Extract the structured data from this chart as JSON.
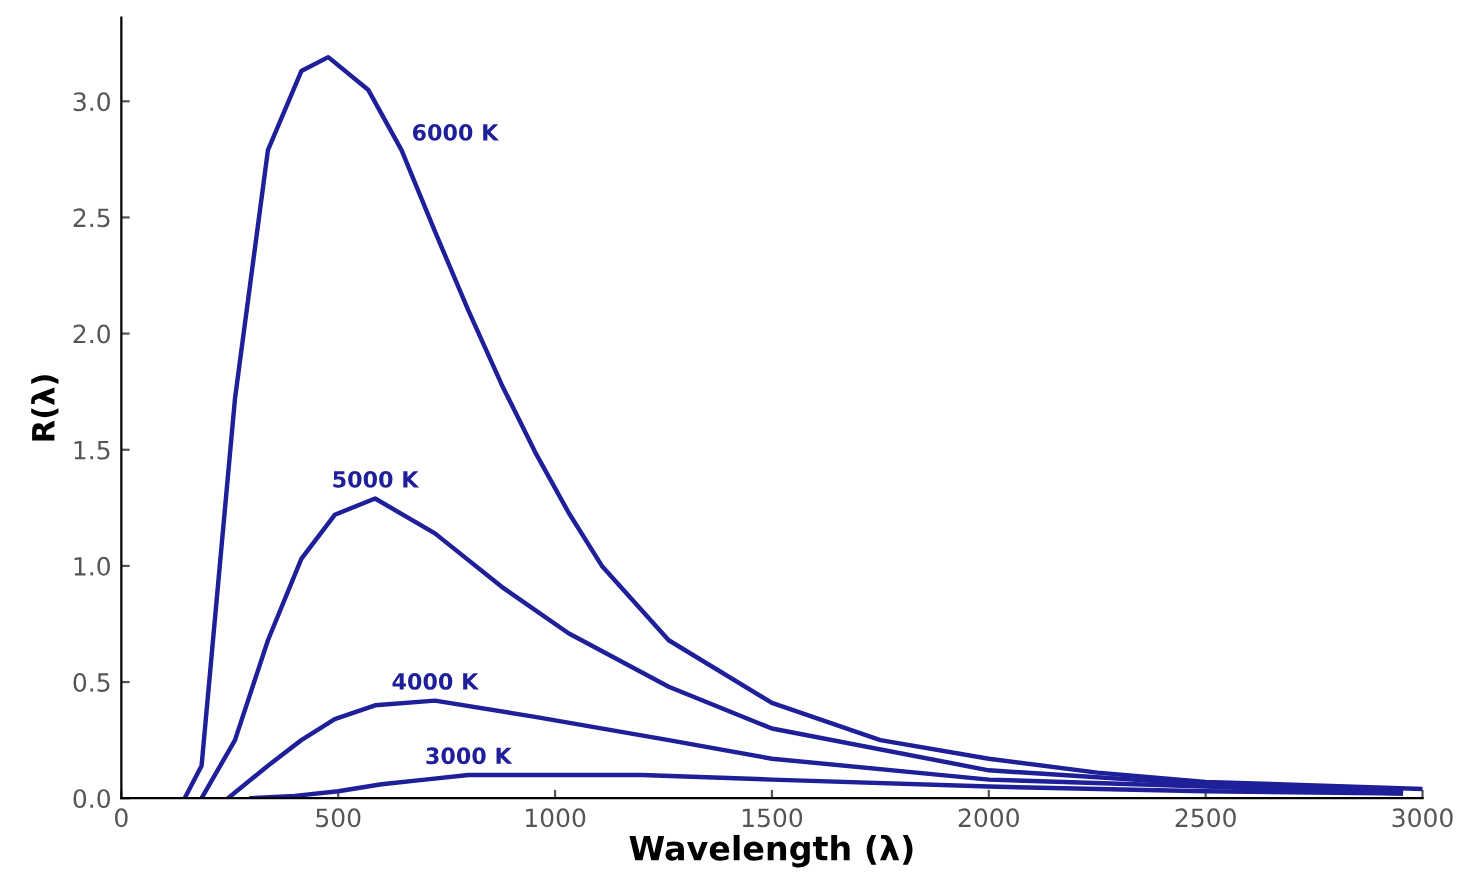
{
  "chart_data": {
    "type": "line",
    "xlabel": "Wavelength (λ)",
    "ylabel": "R(λ)",
    "xlim": [
      0,
      3000
    ],
    "ylim": [
      0,
      3.36
    ],
    "xticks": [
      0,
      500,
      1000,
      1500,
      2000,
      2500,
      3000
    ],
    "yticks": [
      {
        "value": 0,
        "label": "0.0"
      },
      {
        "value": 0.5,
        "label": "0.5"
      },
      {
        "value": 1,
        "label": "1.0"
      },
      {
        "value": 1.5,
        "label": "1.5"
      },
      {
        "value": 2,
        "label": "2.0"
      },
      {
        "value": 2.5,
        "label": "2.5"
      },
      {
        "value": 3,
        "label": "3.0"
      }
    ],
    "grid": false,
    "legend": false,
    "marker": "none",
    "line_style": "solid",
    "series": [
      {
        "name": "6000 K",
        "color": "#1f1f9a",
        "x": [
          146,
          185,
          262,
          338,
          415,
          477,
          569,
          646,
          723,
          800,
          877,
          954,
          1031,
          1108,
          1262,
          1500,
          1750,
          2000,
          2250,
          2500,
          3000
        ],
        "values": [
          0,
          0.14,
          1.72,
          2.79,
          3.13,
          3.19,
          3.05,
          2.79,
          2.44,
          2.1,
          1.78,
          1.49,
          1.23,
          1.0,
          0.68,
          0.41,
          0.25,
          0.17,
          0.11,
          0.07,
          0.04
        ]
      },
      {
        "name": "5000 K",
        "color": "#1f1f9a",
        "x": [
          185,
          262,
          338,
          415,
          492,
          585,
          723,
          877,
          1031,
          1262,
          1500,
          2000,
          2500,
          2950
        ],
        "values": [
          0,
          0.25,
          0.68,
          1.03,
          1.22,
          1.29,
          1.14,
          0.91,
          0.71,
          0.48,
          0.3,
          0.12,
          0.06,
          0.03
        ]
      },
      {
        "name": "4000 K",
        "color": "#1f1f9a",
        "x": [
          246,
          338,
          415,
          492,
          585,
          723,
          954,
          1262,
          1500,
          2000,
          2500,
          2950
        ],
        "values": [
          0,
          0.14,
          0.25,
          0.34,
          0.4,
          0.42,
          0.35,
          0.25,
          0.17,
          0.08,
          0.05,
          0.02
        ]
      },
      {
        "name": "3000 K",
        "color": "#1f1f9a",
        "x": [
          300,
          400,
          500,
          600,
          700,
          800,
          950,
          1200,
          1500,
          2000,
          2500,
          2950
        ],
        "values": [
          0,
          0.01,
          0.03,
          0.06,
          0.08,
          0.1,
          0.1,
          0.1,
          0.08,
          0.05,
          0.03,
          0.02
        ]
      }
    ]
  }
}
